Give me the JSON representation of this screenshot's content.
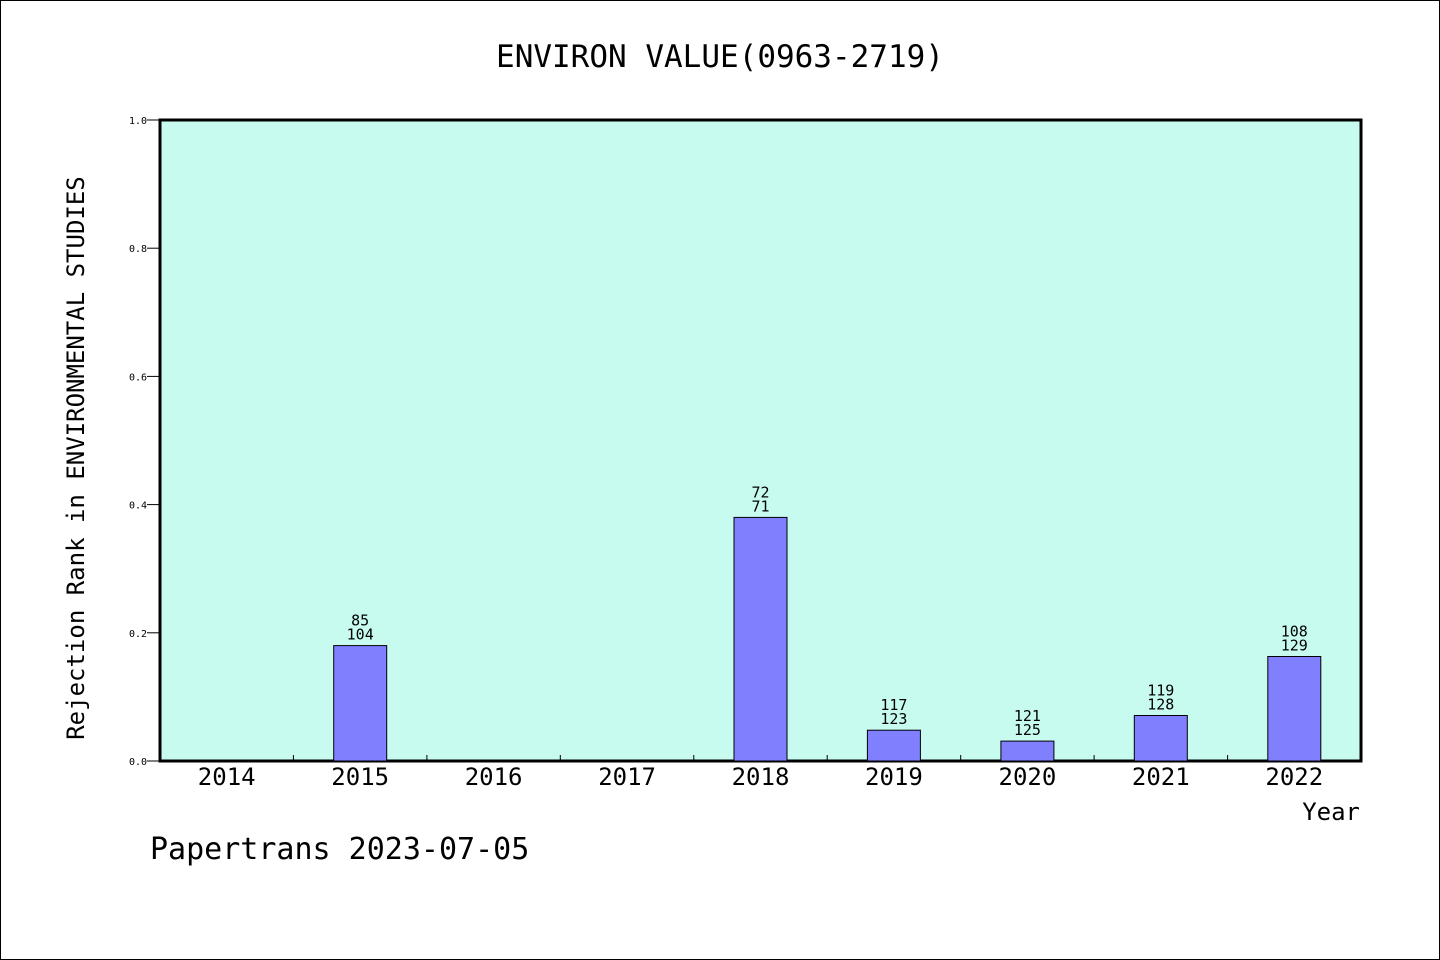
{
  "footer": {
    "note": "Papertrans 2023-07-05"
  },
  "colors": {
    "plot_background": "#c8fbef",
    "bar_fill": "#8080ff",
    "bar_stroke": "#000000",
    "axis": "#000000"
  },
  "chart_data": {
    "type": "bar",
    "title": "ENVIRON VALUE(0963-2719)",
    "xlabel": "Year",
    "ylabel": "Rejection Rank in ENVIRONMENTAL STUDIES",
    "ylim": [
      0,
      1.0
    ],
    "yticks": [
      "0.0",
      "0.2",
      "0.4",
      "0.6",
      "0.8",
      "1.0"
    ],
    "categories": [
      "2014",
      "2015",
      "2016",
      "2017",
      "2018",
      "2019",
      "2020",
      "2021",
      "2022"
    ],
    "values": [
      0,
      0.18,
      0,
      0,
      0.38,
      0.048,
      0.031,
      0.071,
      0.163
    ],
    "bar_labels": [
      null,
      [
        "85",
        "104"
      ],
      null,
      null,
      [
        "72",
        "71"
      ],
      [
        "117",
        "123"
      ],
      [
        "121",
        "125"
      ],
      [
        "119",
        "128"
      ],
      [
        "108",
        "129"
      ]
    ],
    "grid": false,
    "legend": "none"
  }
}
